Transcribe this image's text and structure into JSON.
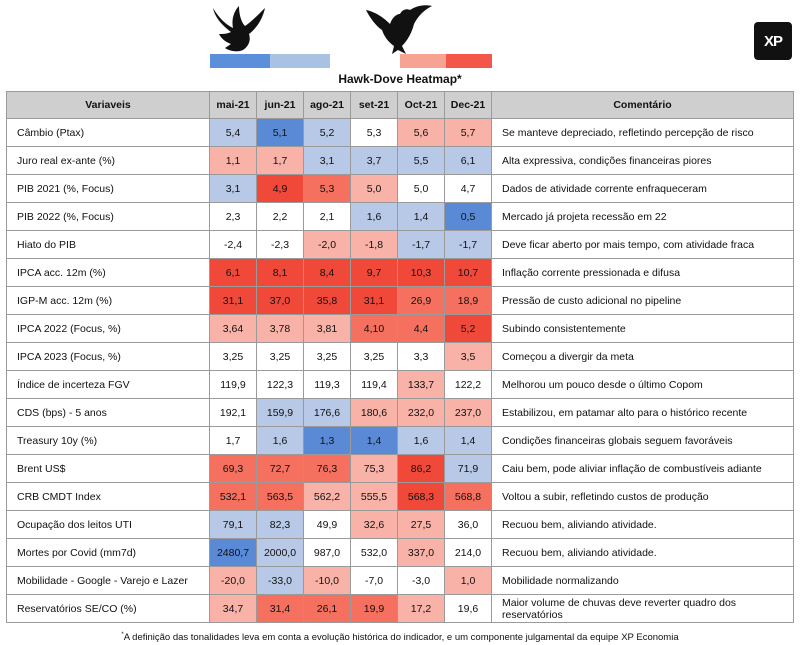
{
  "title": "Hawk-Dove Heatmap*",
  "logo": "XP",
  "legend": {
    "dove_colors": [
      "#5b8fd9",
      "#a9c1e3"
    ],
    "hawk_colors": [
      "#f6a393",
      "#f4574a"
    ]
  },
  "headers": {
    "variable": "Variaveis",
    "months": [
      "mai-21",
      "jun-21",
      "ago-21",
      "set-21",
      "Oct-21",
      "Dec-21"
    ],
    "comment": "Comentário"
  },
  "colors": {
    "N": "#ffffff",
    "B1": "#b7c9e6",
    "B2": "#5a8ad6",
    "R1": "#f9b2a8",
    "R2": "#f5705f",
    "R3": "#f0493a"
  },
  "rows": [
    {
      "name": "Câmbio (Ptax)",
      "values": [
        "5,4",
        "5,1",
        "5,2",
        "5,3",
        "5,6",
        "5,7"
      ],
      "colors": [
        "B1",
        "B2",
        "B1",
        "N",
        "R1",
        "R1"
      ],
      "comment": "Se manteve depreciado, refletindo percepção de risco"
    },
    {
      "name": "Juro real ex-ante (%)",
      "values": [
        "1,1",
        "1,7",
        "3,1",
        "3,7",
        "5,5",
        "6,1"
      ],
      "colors": [
        "R1",
        "R1",
        "B1",
        "B1",
        "B1",
        "B1"
      ],
      "comment": "Alta expressiva, condições financeiras piores"
    },
    {
      "name": "PIB 2021 (%, Focus)",
      "values": [
        "3,1",
        "4,9",
        "5,3",
        "5,0",
        "5,0",
        "4,7"
      ],
      "colors": [
        "B1",
        "R3",
        "R2",
        "R1",
        "N",
        "N"
      ],
      "comment": "Dados de atividade corrente enfraqueceram"
    },
    {
      "name": "PIB 2022 (%, Focus)",
      "values": [
        "2,3",
        "2,2",
        "2,1",
        "1,6",
        "1,4",
        "0,5"
      ],
      "colors": [
        "N",
        "N",
        "N",
        "B1",
        "B1",
        "B2"
      ],
      "comment": "Mercado já projeta recessão em 22"
    },
    {
      "name": "Hiato do PIB",
      "values": [
        "-2,4",
        "-2,3",
        "-2,0",
        "-1,8",
        "-1,7",
        "-1,7"
      ],
      "colors": [
        "N",
        "N",
        "R1",
        "R1",
        "B1",
        "B1"
      ],
      "comment": "Deve ficar aberto por mais tempo, com atividade fraca"
    },
    {
      "name": "IPCA acc. 12m (%)",
      "values": [
        "6,1",
        "8,1",
        "8,4",
        "9,7",
        "10,3",
        "10,7"
      ],
      "colors": [
        "R3",
        "R3",
        "R3",
        "R3",
        "R3",
        "R3"
      ],
      "comment": "Inflação corrente pressionada e difusa"
    },
    {
      "name": "IGP-M acc. 12m (%)",
      "values": [
        "31,1",
        "37,0",
        "35,8",
        "31,1",
        "26,9",
        "18,9"
      ],
      "colors": [
        "R3",
        "R3",
        "R3",
        "R3",
        "R2",
        "R2"
      ],
      "comment": "Pressão de custo adicional no pipeline"
    },
    {
      "name": "IPCA 2022 (Focus, %)",
      "values": [
        "3,64",
        "3,78",
        "3,81",
        "4,10",
        "4,4",
        "5,2"
      ],
      "colors": [
        "R1",
        "R1",
        "R1",
        "R2",
        "R2",
        "R3"
      ],
      "comment": "Subindo consistentemente"
    },
    {
      "name": "IPCA 2023 (Focus, %)",
      "values": [
        "3,25",
        "3,25",
        "3,25",
        "3,25",
        "3,3",
        "3,5"
      ],
      "colors": [
        "N",
        "N",
        "N",
        "N",
        "N",
        "R1"
      ],
      "comment": "Começou a divergir da meta"
    },
    {
      "name": "Índice de incerteza FGV",
      "values": [
        "119,9",
        "122,3",
        "119,3",
        "119,4",
        "133,7",
        "122,2"
      ],
      "colors": [
        "N",
        "N",
        "N",
        "N",
        "R1",
        "N"
      ],
      "comment": "Melhorou um pouco desde o último Copom"
    },
    {
      "name": "CDS (bps) - 5 anos",
      "values": [
        "192,1",
        "159,9",
        "176,6",
        "180,6",
        "232,0",
        "237,0"
      ],
      "colors": [
        "N",
        "B1",
        "B1",
        "R1",
        "R1",
        "R1"
      ],
      "comment": "Estabilizou, em patamar alto para o histórico recente"
    },
    {
      "name": "Treasury 10y (%)",
      "values": [
        "1,7",
        "1,6",
        "1,3",
        "1,4",
        "1,6",
        "1,4"
      ],
      "colors": [
        "N",
        "B1",
        "B2",
        "B2",
        "B1",
        "B1"
      ],
      "comment": "Condições financeiras globais seguem favoráveis"
    },
    {
      "name": "Brent US$",
      "values": [
        "69,3",
        "72,7",
        "76,3",
        "75,3",
        "86,2",
        "71,9"
      ],
      "colors": [
        "R2",
        "R2",
        "R2",
        "R1",
        "R3",
        "B1"
      ],
      "comment": "Caiu bem, pode aliviar inflação de combustíveis adiante"
    },
    {
      "name": "CRB CMDT Index",
      "values": [
        "532,1",
        "563,5",
        "562,2",
        "555,5",
        "568,3",
        "568,8"
      ],
      "colors": [
        "R2",
        "R2",
        "R1",
        "R1",
        "R3",
        "R2"
      ],
      "comment": "Voltou a subir, refletindo custos de produção"
    },
    {
      "name": "Ocupação dos leitos UTI",
      "values": [
        "79,1",
        "82,3",
        "49,9",
        "32,6",
        "27,5",
        "36,0"
      ],
      "colors": [
        "B1",
        "B1",
        "N",
        "R1",
        "R1",
        "N"
      ],
      "comment": "Recuou bem, aliviando atividade."
    },
    {
      "name": "Mortes por Covid (mm7d)",
      "values": [
        "2480,7",
        "2000,0",
        "987,0",
        "532,0",
        "337,0",
        "214,0"
      ],
      "colors": [
        "B2",
        "B1",
        "N",
        "N",
        "R1",
        "N"
      ],
      "comment": "Recuou bem, aliviando atividade."
    },
    {
      "name": "Mobilidade - Google - Varejo e Lazer",
      "values": [
        "-20,0",
        "-33,0",
        "-10,0",
        "-7,0",
        "-3,0",
        "1,0"
      ],
      "colors": [
        "R1",
        "B1",
        "R1",
        "N",
        "N",
        "R1"
      ],
      "comment": "Mobilidade normalizando"
    },
    {
      "name": "Reservatórios SE/CO (%)",
      "values": [
        "34,7",
        "31,4",
        "26,1",
        "19,9",
        "17,2",
        "19,6"
      ],
      "colors": [
        "R1",
        "R2",
        "R2",
        "R2",
        "R1",
        "N"
      ],
      "comment": "Maior volume de chuvas deve reverter quadro dos reservatórios"
    }
  ],
  "footnote": {
    "mark": "*",
    "text": "A definição das tonalidades leva em conta a evolução histórica do indicador, e um componente julgamental da equipe XP Economia"
  }
}
